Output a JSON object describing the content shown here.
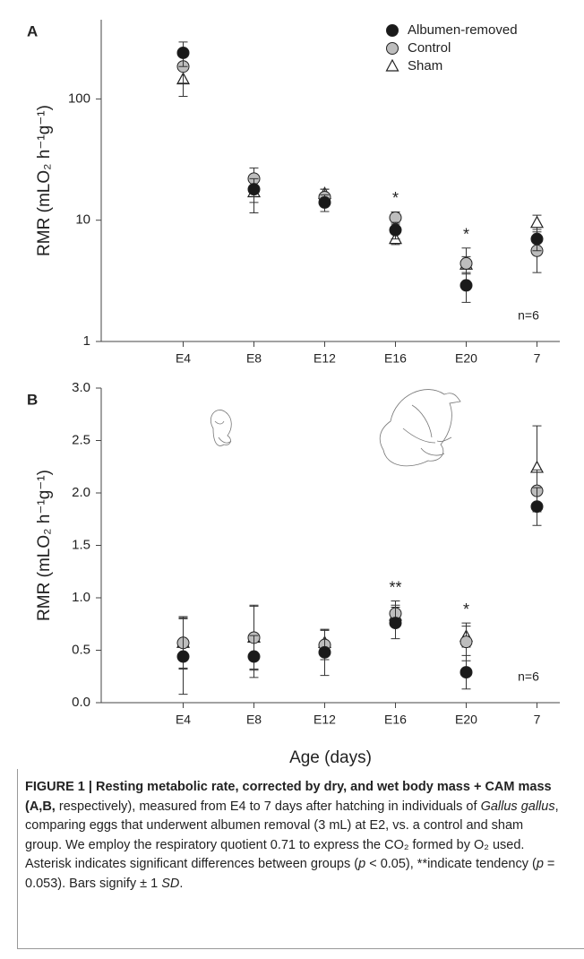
{
  "chart_data": [
    {
      "type": "scatter",
      "panel": "A",
      "y_label": "RMR (mLO₂ h⁻¹g⁻¹)",
      "log_y": true,
      "categories": [
        "E4",
        "E8",
        "E12",
        "E16",
        "E20",
        "7"
      ],
      "ylim": [
        1,
        450
      ],
      "yticks": [
        1,
        10,
        100
      ],
      "legend": "top-right",
      "series": [
        {
          "name": "Albumen-removed",
          "color": "#1a1a1a",
          "marker": "circle",
          "values": [
            240,
            18,
            14,
            8.3,
            2.9,
            7
          ],
          "errors": [
            55,
            4,
            2.2,
            1.3,
            0.8,
            1.4
          ]
        },
        {
          "name": "Control",
          "color": "#bdbdbd",
          "marker": "circle",
          "values": [
            185,
            22,
            15.5,
            10.5,
            4.4,
            5.6
          ],
          "errors": [
            50,
            5,
            2.5,
            1.2,
            1.5,
            1.9
          ]
        },
        {
          "name": "Sham",
          "color": "#ffffff",
          "marker": "triangle",
          "values": [
            145,
            17,
            16.5,
            7,
            4.3,
            9.5
          ],
          "errors": [
            40,
            5.5,
            1.5,
            0.7,
            0.7,
            1.5
          ]
        }
      ],
      "annotations": [
        {
          "text": "*",
          "category": "E16"
        },
        {
          "text": "*",
          "category": "E20"
        }
      ],
      "note": "n=6"
    },
    {
      "type": "scatter",
      "panel": "B",
      "y_label": "RMR (mLO₂ h⁻¹g⁻¹)",
      "x_label": "Age (days)",
      "log_y": false,
      "categories": [
        "E4",
        "E8",
        "E12",
        "E16",
        "E20",
        "7"
      ],
      "ylim": [
        0,
        3
      ],
      "yticks": [
        {
          "value": 0,
          "label": "0.0"
        },
        0.5,
        {
          "value": 1,
          "label": "1.0"
        },
        1.5,
        {
          "value": 2,
          "label": "2.0"
        },
        2.5,
        {
          "value": 3,
          "label": "3.0"
        }
      ],
      "series": [
        {
          "name": "Albumen-removed",
          "color": "#1a1a1a",
          "marker": "circle",
          "values": [
            0.44,
            0.44,
            0.48,
            0.76,
            0.29,
            1.87
          ],
          "errors": [
            0.36,
            0.2,
            0.22,
            0.15,
            0.16,
            0.18
          ]
        },
        {
          "name": "Control",
          "color": "#bdbdbd",
          "marker": "circle",
          "values": [
            0.57,
            0.62,
            0.55,
            0.85,
            0.58,
            2.02
          ],
          "errors": [
            0.25,
            0.31,
            0.14,
            0.12,
            0.18,
            0.2
          ]
        },
        {
          "name": "Sham",
          "color": "#ffffff",
          "marker": "triangle",
          "values": [
            0.57,
            0.62,
            0.57,
            0.83,
            0.63,
            2.24
          ],
          "errors": [
            0.24,
            0.3,
            0.12,
            0.1,
            0.1,
            0.4
          ]
        }
      ],
      "annotations": [
        {
          "text": "**",
          "category": "E16"
        },
        {
          "text": "*",
          "category": "E20"
        }
      ],
      "note": "n=6"
    }
  ],
  "caption": [
    {
      "text": "FIGURE 1 | Resting metabolic rate, corrected by dry, and wet body mass + CAM mass (A,B,",
      "style": "bold"
    },
    {
      "text": " respectively), measured from E4 to 7 days after hatching in individuals of ",
      "style": "normal"
    },
    {
      "text": "Gallus gallus",
      "style": "italic"
    },
    {
      "text": ", comparing eggs that underwent albumen removal (3 mL) at E2, vs. a control and sham group. We employ the respiratory quotient 0.71 to express the CO₂ formed by O₂ used. Asterisk indicates significant differences between groups (",
      "style": "normal"
    },
    {
      "text": "p",
      "style": "italic"
    },
    {
      "text": " < 0.05), **indicate tendency (",
      "style": "normal"
    },
    {
      "text": "p",
      "style": "italic"
    },
    {
      "text": " = 0.053). Bars signify ± 1 ",
      "style": "normal"
    },
    {
      "text": "SD",
      "style": "italic"
    },
    {
      "text": ".",
      "style": "normal"
    }
  ]
}
